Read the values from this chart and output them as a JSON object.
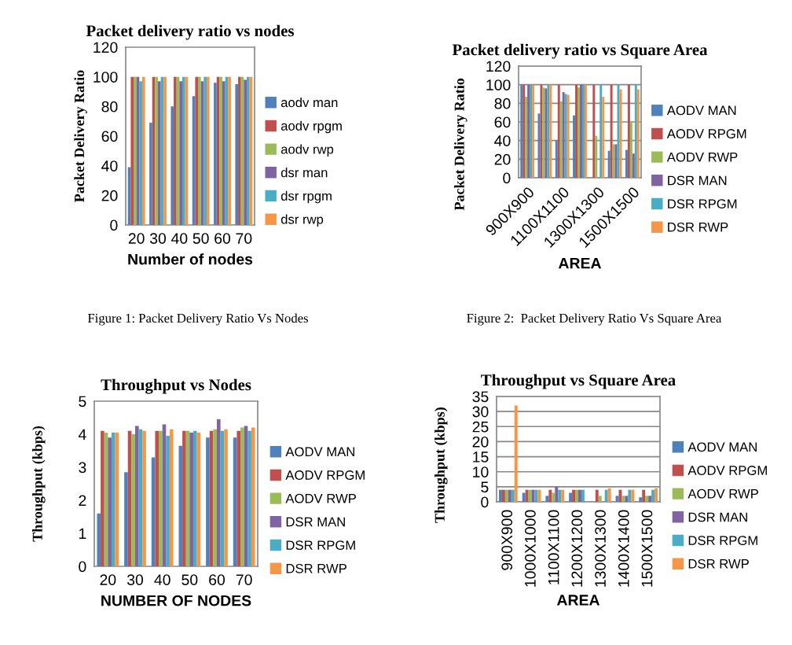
{
  "chart_data": [
    {
      "type": "bar",
      "title": "Packet delivery ratio vs nodes",
      "xlabel": "Number of nodes",
      "ylabel": "Packet Delivery Ratio",
      "categories": [
        "20",
        "30",
        "40",
        "50",
        "60",
        "70"
      ],
      "ylim": [
        0,
        120
      ],
      "yticks": [
        0,
        20,
        40,
        60,
        80,
        100,
        120
      ],
      "grid": false,
      "legend": "right",
      "annotations": [
        "Figure 1: Packet Delivery Ratio Vs Nodes"
      ],
      "series": [
        {
          "name": "aodv man",
          "color": "#4f81bd",
          "values": [
            39,
            69,
            80,
            87,
            96,
            95
          ]
        },
        {
          "name": "aodv rpgm",
          "color": "#c0504d",
          "values": [
            100,
            100,
            100,
            100,
            100,
            100
          ]
        },
        {
          "name": "aodv rwp",
          "color": "#9bbb59",
          "values": [
            100,
            100,
            100,
            100,
            100,
            100
          ]
        },
        {
          "name": "dsr man",
          "color": "#8064a2",
          "values": [
            100,
            97,
            97,
            97,
            97,
            98
          ]
        },
        {
          "name": "dsr rpgm",
          "color": "#4bacc6",
          "values": [
            97,
            100,
            100,
            100,
            100,
            100
          ]
        },
        {
          "name": "dsr rwp",
          "color": "#f79646",
          "values": [
            100,
            100,
            100,
            100,
            100,
            100
          ]
        }
      ]
    },
    {
      "type": "bar",
      "title": "Packet delivery ratio vs Square Area",
      "xlabel": "AREA",
      "ylabel": "Packet Delivery Ratio",
      "categories": [
        "900X900",
        null,
        "1100X1100",
        null,
        "1300X1300",
        null,
        "1500X1500"
      ],
      "ylim": [
        0,
        120
      ],
      "yticks": [
        0,
        20,
        40,
        60,
        80,
        100,
        120
      ],
      "grid": "y",
      "legend": "right",
      "annotations": [
        "Figure 2:  Packet Delivery Ratio Vs Square Area"
      ],
      "series": [
        {
          "name": "AODV MAN",
          "color": "#4f81bd",
          "values": [
            100,
            69,
            40,
            67,
            0,
            29,
            30
          ]
        },
        {
          "name": "AODV RPGM",
          "color": "#c0504d",
          "values": [
            100,
            100,
            100,
            100,
            100,
            100,
            100
          ]
        },
        {
          "name": "AODV RWP",
          "color": "#9bbb59",
          "values": [
            87,
            97,
            82,
            97,
            45,
            36,
            60
          ]
        },
        {
          "name": "DSR MAN",
          "color": "#8064a2",
          "values": [
            100,
            96,
            92,
            100,
            0,
            36,
            26
          ]
        },
        {
          "name": "DSR RPGM",
          "color": "#4bacc6",
          "values": [
            100,
            100,
            90,
            100,
            100,
            100,
            100
          ]
        },
        {
          "name": "DSR RWP",
          "color": "#f79646",
          "values": [
            100,
            100,
            89,
            100,
            87,
            95,
            95
          ]
        }
      ]
    },
    {
      "type": "bar",
      "title": "Throughput vs Nodes",
      "xlabel": "NUMBER OF NODES",
      "ylabel": "Throughput (kbps)",
      "categories": [
        "20",
        "30",
        "40",
        "50",
        "60",
        "70"
      ],
      "ylim": [
        0,
        5
      ],
      "yticks": [
        0,
        1,
        2,
        3,
        4,
        5
      ],
      "grid": false,
      "legend": "right",
      "series": [
        {
          "name": "AODV MAN",
          "color": "#4f81bd",
          "values": [
            1.6,
            2.85,
            3.3,
            3.65,
            3.9,
            3.9
          ]
        },
        {
          "name": "AODV RPGM",
          "color": "#c0504d",
          "values": [
            4.1,
            4.1,
            4.1,
            4.1,
            4.1,
            4.1
          ]
        },
        {
          "name": "AODV RWP",
          "color": "#9bbb59",
          "values": [
            4.05,
            4.0,
            4.1,
            4.1,
            4.15,
            4.2
          ]
        },
        {
          "name": "DSR MAN",
          "color": "#8064a2",
          "values": [
            3.9,
            4.25,
            4.3,
            4.05,
            4.45,
            4.25
          ]
        },
        {
          "name": "DSR RPGM",
          "color": "#4bacc6",
          "values": [
            4.05,
            4.15,
            3.95,
            4.1,
            4.1,
            4.1
          ]
        },
        {
          "name": "DSR RWP",
          "color": "#f79646",
          "values": [
            4.05,
            4.1,
            4.15,
            4.05,
            4.15,
            4.2
          ]
        }
      ]
    },
    {
      "type": "bar",
      "title": "Throughput vs Square Area",
      "xlabel": "AREA",
      "ylabel": "Throughput (kbps)",
      "categories": [
        "900X900",
        "1000X1000",
        "1100X1100",
        "1200X1200",
        "1300X1300",
        "1400X1400",
        "1500X1500"
      ],
      "ylim": [
        0,
        35
      ],
      "yticks": [
        0,
        5,
        10,
        15,
        20,
        25,
        30,
        35
      ],
      "grid": "y",
      "legend": "right",
      "series": [
        {
          "name": "AODV MAN",
          "color": "#4f81bd",
          "values": [
            4,
            3,
            2,
            3,
            0,
            2,
            1.5
          ]
        },
        {
          "name": "AODV RPGM",
          "color": "#c0504d",
          "values": [
            4,
            4,
            4,
            4,
            4,
            4,
            4
          ]
        },
        {
          "name": "AODV RWP",
          "color": "#9bbb59",
          "values": [
            4,
            4,
            3,
            4,
            2,
            2,
            2
          ]
        },
        {
          "name": "DSR MAN",
          "color": "#8064a2",
          "values": [
            4,
            4,
            5,
            4,
            0,
            2,
            2
          ]
        },
        {
          "name": "DSR RPGM",
          "color": "#4bacc6",
          "values": [
            4,
            4,
            4,
            4,
            4,
            4,
            4
          ]
        },
        {
          "name": "DSR RWP",
          "color": "#f79646",
          "values": [
            32,
            4,
            4,
            0,
            4.5,
            4,
            4.5
          ]
        }
      ]
    }
  ]
}
